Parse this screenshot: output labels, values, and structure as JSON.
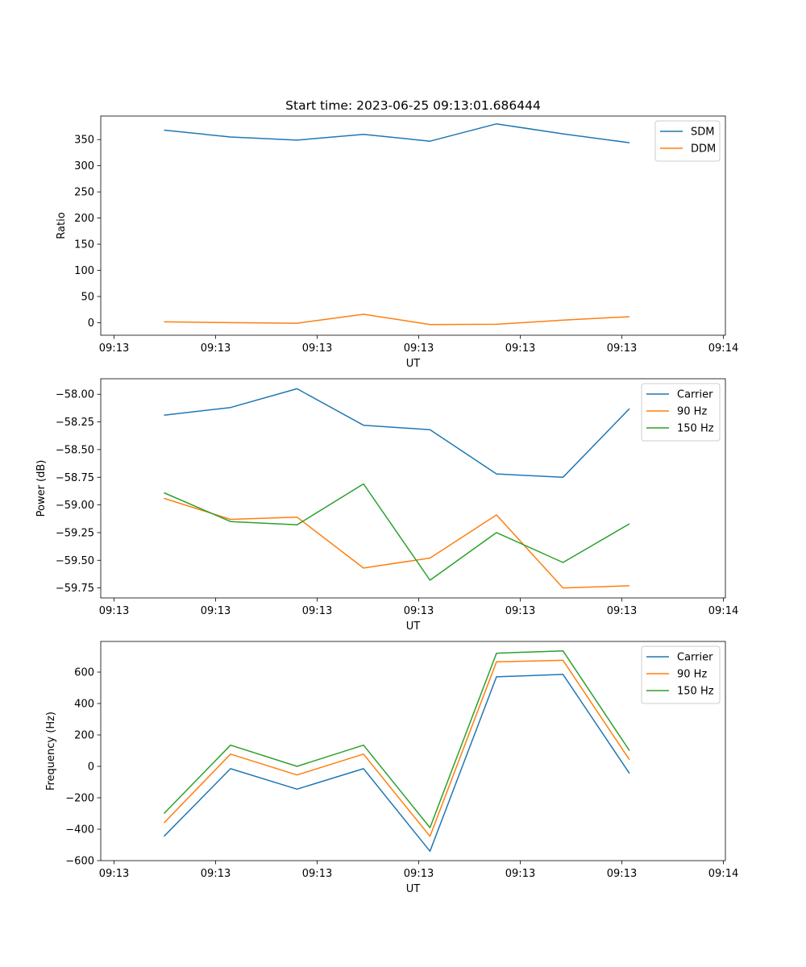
{
  "figure": {
    "title": "Start time: 2023-06-25 09:13:01.686444"
  },
  "chart_data": [
    {
      "type": "line",
      "title": "Start time: 2023-06-25 09:13:01.686444",
      "xlabel": "UT",
      "ylabel": "Ratio",
      "x_tick_labels": [
        "09:13",
        "09:13",
        "09:13",
        "09:13",
        "09:13",
        "09:13",
        "09:14"
      ],
      "y_ticks": [
        0,
        50,
        100,
        150,
        200,
        250,
        300,
        350
      ],
      "ylim": [
        -24,
        395
      ],
      "grid": false,
      "legend_position": "upper right",
      "series": [
        {
          "name": "SDM",
          "color": "#1f77b4",
          "values": [
            368,
            355,
            349,
            360,
            347,
            380,
            361,
            344
          ]
        },
        {
          "name": "DDM",
          "color": "#ff7f0e",
          "values": [
            1.5,
            0,
            -1,
            16,
            -3.5,
            -3,
            5,
            11.5
          ]
        }
      ]
    },
    {
      "type": "line",
      "xlabel": "UT",
      "ylabel": "Power (dB)",
      "x_tick_labels": [
        "09:13",
        "09:13",
        "09:13",
        "09:13",
        "09:13",
        "09:13",
        "09:14"
      ],
      "y_ticks": [
        -59.75,
        -59.5,
        -59.25,
        -59.0,
        -58.75,
        -58.5,
        -58.25,
        -58.0
      ],
      "y_tick_labels": [
        "−59.75",
        "−59.50",
        "−59.25",
        "−59.00",
        "−58.75",
        "−58.50",
        "−58.25",
        "−58.00"
      ],
      "ylim": [
        -59.84,
        -57.86
      ],
      "grid": false,
      "legend_position": "upper right",
      "series": [
        {
          "name": "Carrier",
          "color": "#1f77b4",
          "values": [
            -58.19,
            -58.12,
            -57.95,
            -58.28,
            -58.32,
            -58.72,
            -58.75,
            -58.13
          ]
        },
        {
          "name": "90 Hz",
          "color": "#ff7f0e",
          "values": [
            -58.94,
            -59.13,
            -59.11,
            -59.57,
            -59.48,
            -59.09,
            -59.75,
            -59.73
          ]
        },
        {
          "name": "150 Hz",
          "color": "#2ca02c",
          "values": [
            -58.89,
            -59.15,
            -59.18,
            -58.81,
            -59.68,
            -59.25,
            -59.52,
            -59.17
          ]
        }
      ]
    },
    {
      "type": "line",
      "xlabel": "UT",
      "ylabel": "Frequency (Hz)",
      "x_tick_labels": [
        "09:13",
        "09:13",
        "09:13",
        "09:13",
        "09:13",
        "09:13",
        "09:14"
      ],
      "y_ticks": [
        -600,
        -400,
        -200,
        0,
        200,
        400,
        600
      ],
      "y_tick_labels": [
        "−600",
        "−400",
        "−200",
        "0",
        "200",
        "400",
        "600"
      ],
      "ylim": [
        -600,
        795
      ],
      "grid": false,
      "legend_position": "upper right",
      "series": [
        {
          "name": "Carrier",
          "color": "#1f77b4",
          "values": [
            -445,
            -15,
            -145,
            -15,
            -540,
            570,
            585,
            -45
          ]
        },
        {
          "name": "90 Hz",
          "color": "#ff7f0e",
          "values": [
            -360,
            78,
            -55,
            78,
            -445,
            665,
            675,
            42
          ]
        },
        {
          "name": "150 Hz",
          "color": "#2ca02c",
          "values": [
            -300,
            135,
            0,
            135,
            -390,
            720,
            735,
            100
          ]
        }
      ]
    }
  ]
}
